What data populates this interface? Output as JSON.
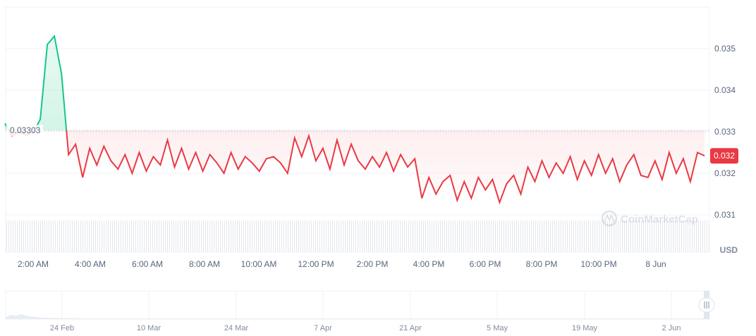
{
  "chart_data": {
    "type": "area",
    "baseline_label": "0.03303",
    "baseline_value": 0.03303,
    "current_price_label": "0.032",
    "current_value": 0.03242,
    "currency_label": "USD",
    "watermark": "CoinMarketCap",
    "ylim": [
      0.0305,
      0.0361
    ],
    "y_ticks": [
      "0.035",
      "0.034",
      "0.033",
      "0.032",
      "0.031"
    ],
    "y_tick_values": [
      0.035,
      0.034,
      0.033,
      0.032,
      0.031
    ],
    "x_ticks": [
      "2:00 AM",
      "4:00 AM",
      "6:00 AM",
      "8:00 AM",
      "10:00 AM",
      "12:00 PM",
      "2:00 PM",
      "4:00 PM",
      "6:00 PM",
      "8:00 PM",
      "10:00 PM",
      "8 Jun"
    ],
    "colors": {
      "up": "#16c784",
      "down": "#ea3943",
      "grid": "#eff2f5"
    },
    "grid": true,
    "series": [
      {
        "x": [
          "01:00",
          "01:15",
          "01:30",
          "01:45",
          "02:00",
          "02:15",
          "02:30",
          "02:45",
          "03:00",
          "03:15",
          "03:30",
          "03:45",
          "04:00",
          "04:15",
          "04:30",
          "04:45",
          "05:00",
          "05:15",
          "05:30",
          "05:45",
          "06:00",
          "06:15",
          "06:30",
          "06:45",
          "07:00",
          "07:15",
          "07:30",
          "07:45",
          "08:00",
          "08:15",
          "08:30",
          "08:45",
          "09:00",
          "09:15",
          "09:30",
          "09:45",
          "10:00",
          "10:15",
          "10:30",
          "10:45",
          "11:00",
          "11:15",
          "11:30",
          "11:45",
          "12:00",
          "12:15",
          "12:30",
          "12:45",
          "13:00",
          "13:15",
          "13:30",
          "13:45",
          "14:00",
          "14:15",
          "14:30",
          "14:45",
          "15:00",
          "15:15",
          "15:30",
          "15:45",
          "16:00",
          "16:15",
          "16:30",
          "16:45",
          "17:00",
          "17:15",
          "17:30",
          "17:45",
          "18:00",
          "18:15",
          "18:30",
          "18:45",
          "19:00",
          "19:15",
          "19:30",
          "19:45",
          "20:00",
          "20:15",
          "20:30",
          "20:45",
          "21:00",
          "21:15",
          "21:30",
          "21:45",
          "22:00",
          "22:15",
          "22:30",
          "22:45",
          "23:00",
          "23:15",
          "23:30",
          "23:45",
          "8 Jun 00:00",
          "8 Jun 00:15",
          "8 Jun 00:30",
          "8 Jun 00:45",
          "8 Jun 01:00",
          "8 Jun 01:15",
          "8 Jun 01:30",
          "8 Jun 01:45"
        ],
        "y": [
          0.0332,
          0.0329,
          0.033,
          0.03292,
          0.03298,
          0.0333,
          0.0351,
          0.0353,
          0.0344,
          0.03245,
          0.0327,
          0.0319,
          0.0326,
          0.0322,
          0.03265,
          0.0323,
          0.0321,
          0.03245,
          0.032,
          0.0325,
          0.03205,
          0.0324,
          0.0322,
          0.0328,
          0.03215,
          0.0326,
          0.0321,
          0.0325,
          0.03205,
          0.03245,
          0.03225,
          0.032,
          0.0325,
          0.0321,
          0.0324,
          0.03225,
          0.03205,
          0.03235,
          0.0324,
          0.03225,
          0.032,
          0.03285,
          0.0324,
          0.0329,
          0.0323,
          0.0326,
          0.0321,
          0.0328,
          0.0322,
          0.0327,
          0.0323,
          0.0321,
          0.0324,
          0.03215,
          0.0325,
          0.03205,
          0.03245,
          0.03215,
          0.03235,
          0.0314,
          0.0319,
          0.0315,
          0.0318,
          0.03195,
          0.03135,
          0.0318,
          0.0314,
          0.0319,
          0.0316,
          0.03185,
          0.0313,
          0.03175,
          0.03195,
          0.0315,
          0.03215,
          0.0318,
          0.0323,
          0.0319,
          0.03225,
          0.032,
          0.0324,
          0.03185,
          0.0323,
          0.03195,
          0.03245,
          0.032,
          0.03235,
          0.0318,
          0.0322,
          0.03245,
          0.03195,
          0.0319,
          0.0323,
          0.03185,
          0.0325,
          0.032,
          0.03235,
          0.0318,
          0.0325,
          0.03242
        ]
      }
    ],
    "navigator": {
      "x_ticks": [
        "24 Feb",
        "10 Mar",
        "24 Mar",
        "7 Apr",
        "21 Apr",
        "5 May",
        "19 May",
        "2 Jun"
      ]
    }
  }
}
